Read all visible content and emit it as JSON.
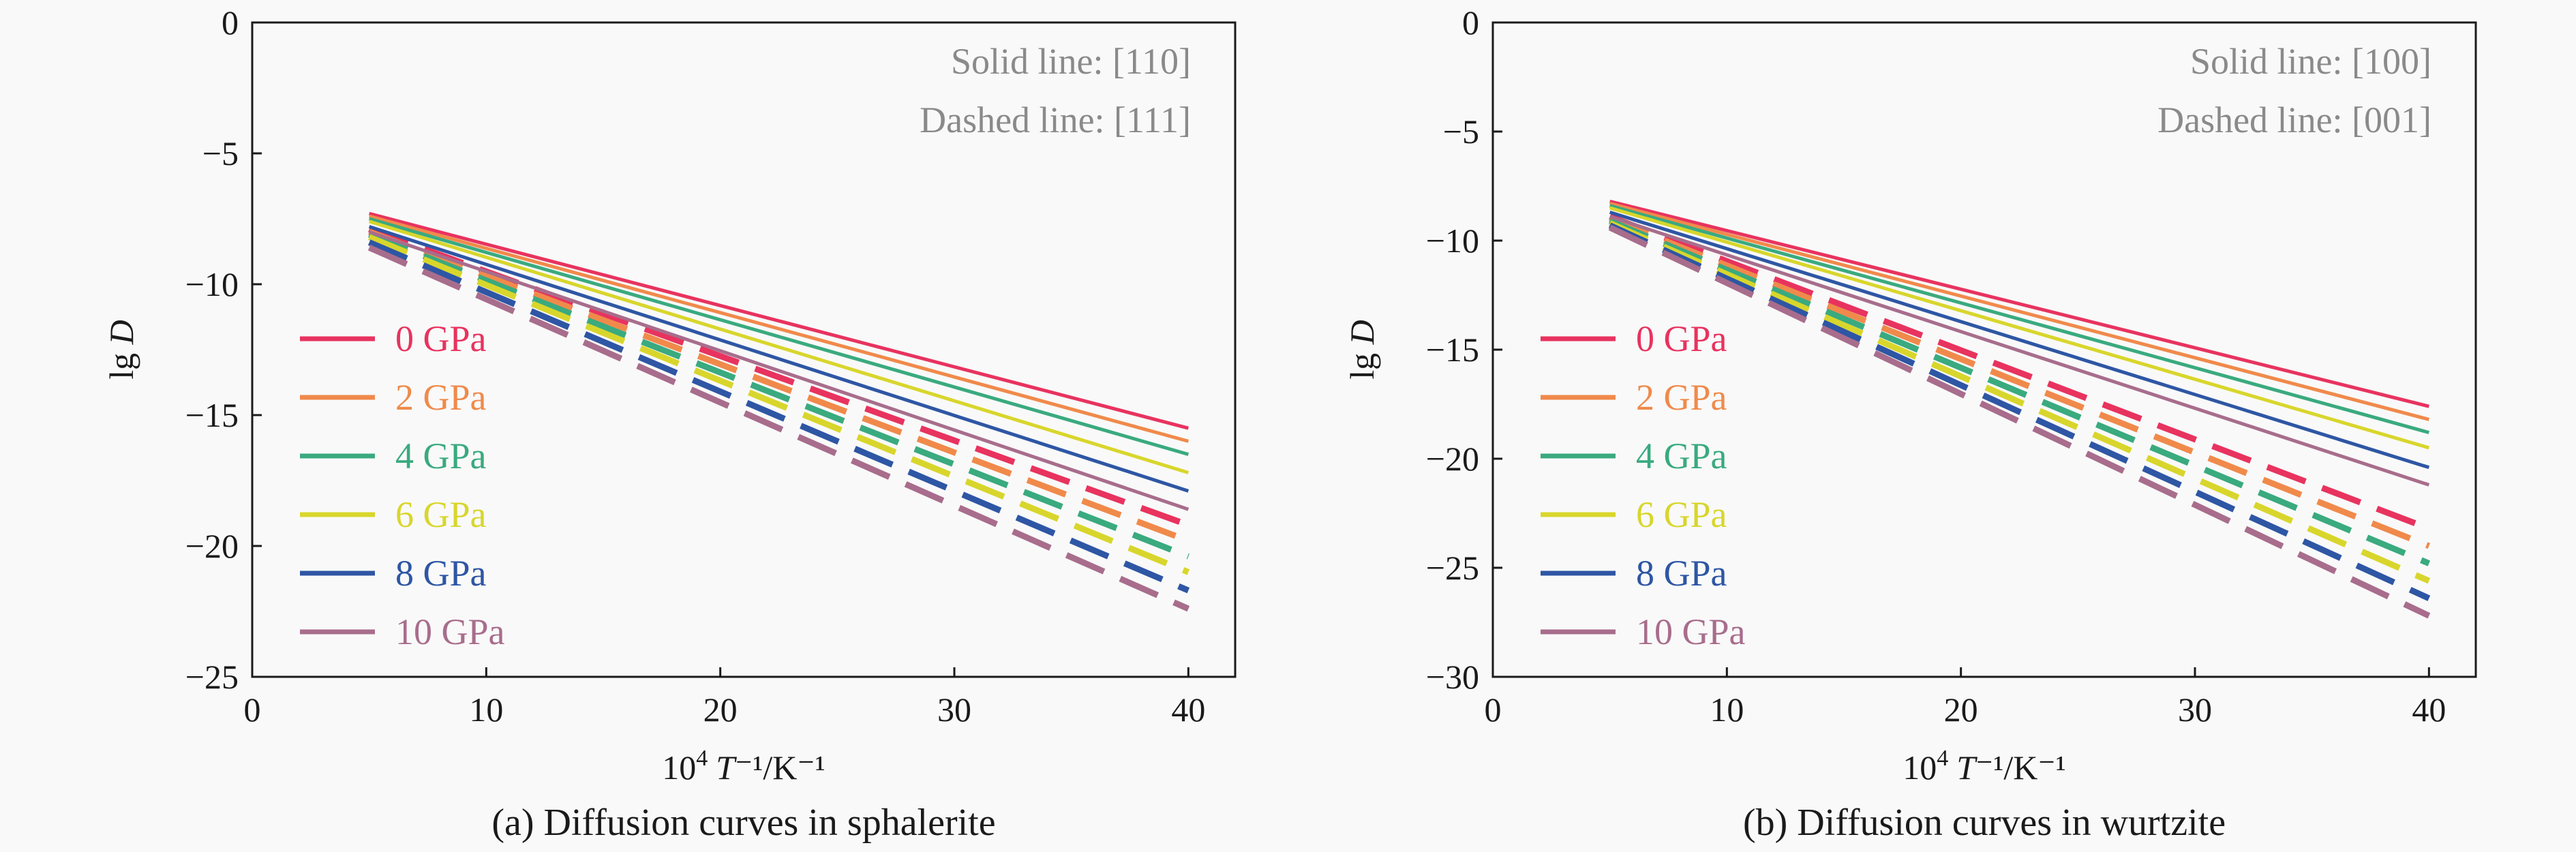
{
  "chart_data": [
    {
      "type": "line",
      "caption": "(a) Diffusion curves in sphalerite",
      "xlabel": {
        "prefix": "10",
        "sup": "4",
        "var": "T",
        "unit": "⁻¹/K⁻¹"
      },
      "ylabel": {
        "prefix": "lg",
        "var": "D"
      },
      "xlim": [
        0,
        42
      ],
      "ylim": [
        -25,
        0
      ],
      "xticks": [
        "0",
        "10",
        "20",
        "30",
        "40"
      ],
      "yticks": [
        "0",
        "−5",
        "−10",
        "−15",
        "−20",
        "−25"
      ],
      "notes": [
        "Solid line: [110]",
        "Dashed line: [111]"
      ],
      "legend_position": "lower-left",
      "series": [
        {
          "name": "0 GPa",
          "color": "#e8335f",
          "solid": [
            [
              5,
              -7.3
            ],
            [
              40,
              -15.5
            ]
          ],
          "dashed": [
            [
              5,
              -7.9
            ],
            [
              40,
              -19.2
            ]
          ]
        },
        {
          "name": "2 GPa",
          "color": "#f08a4b",
          "solid": [
            [
              5,
              -7.4
            ],
            [
              40,
              -16.0
            ]
          ],
          "dashed": [
            [
              5,
              -8.0
            ],
            [
              40,
              -19.8
            ]
          ]
        },
        {
          "name": "4 GPa",
          "color": "#3aaa7f",
          "solid": [
            [
              5,
              -7.5
            ],
            [
              40,
              -16.5
            ]
          ],
          "dashed": [
            [
              5,
              -8.1
            ],
            [
              40,
              -20.4
            ]
          ]
        },
        {
          "name": "6 GPa",
          "color": "#d8d62c",
          "solid": [
            [
              5,
              -7.6
            ],
            [
              40,
              -17.2
            ]
          ],
          "dashed": [
            [
              5,
              -8.2
            ],
            [
              40,
              -21.0
            ]
          ]
        },
        {
          "name": "8 GPa",
          "color": "#2e56a4",
          "solid": [
            [
              5,
              -7.8
            ],
            [
              40,
              -17.9
            ]
          ],
          "dashed": [
            [
              5,
              -8.4
            ],
            [
              40,
              -21.7
            ]
          ]
        },
        {
          "name": "10 GPa",
          "color": "#a86d8c",
          "solid": [
            [
              5,
              -8.0
            ],
            [
              40,
              -18.6
            ]
          ],
          "dashed": [
            [
              5,
              -8.6
            ],
            [
              40,
              -22.4
            ]
          ]
        }
      ]
    },
    {
      "type": "line",
      "caption": "(b) Diffusion curves in wurtzite",
      "xlabel": {
        "prefix": "10",
        "sup": "4",
        "var": "T",
        "unit": "⁻¹/K⁻¹"
      },
      "ylabel": {
        "prefix": "lg",
        "var": "D"
      },
      "xlim": [
        0,
        42
      ],
      "ylim": [
        -30,
        0
      ],
      "xticks": [
        "0",
        "10",
        "20",
        "30",
        "40"
      ],
      "yticks": [
        "0",
        "−5",
        "−10",
        "−15",
        "−20",
        "−25",
        "−30"
      ],
      "notes": [
        "Solid line: [100]",
        "Dashed line: [001]"
      ],
      "legend_position": "lower-left",
      "series": [
        {
          "name": "0 GPa",
          "color": "#e8335f",
          "solid": [
            [
              5,
              -8.2
            ],
            [
              40,
              -17.6
            ]
          ],
          "dashed": [
            [
              5,
              -8.9
            ],
            [
              40,
              -23.2
            ]
          ]
        },
        {
          "name": "2 GPa",
          "color": "#f08a4b",
          "solid": [
            [
              5,
              -8.3
            ],
            [
              40,
              -18.2
            ]
          ],
          "dashed": [
            [
              5,
              -9.0
            ],
            [
              40,
              -24.0
            ]
          ]
        },
        {
          "name": "4 GPa",
          "color": "#3aaa7f",
          "solid": [
            [
              5,
              -8.4
            ],
            [
              40,
              -18.8
            ]
          ],
          "dashed": [
            [
              5,
              -9.1
            ],
            [
              40,
              -24.8
            ]
          ]
        },
        {
          "name": "6 GPa",
          "color": "#d8d62c",
          "solid": [
            [
              5,
              -8.5
            ],
            [
              40,
              -19.5
            ]
          ],
          "dashed": [
            [
              5,
              -9.2
            ],
            [
              40,
              -25.6
            ]
          ]
        },
        {
          "name": "8 GPa",
          "color": "#2e56a4",
          "solid": [
            [
              5,
              -8.7
            ],
            [
              40,
              -20.4
            ]
          ],
          "dashed": [
            [
              5,
              -9.3
            ],
            [
              40,
              -26.4
            ]
          ]
        },
        {
          "name": "10 GPa",
          "color": "#a86d8c",
          "solid": [
            [
              5,
              -8.9
            ],
            [
              40,
              -21.2
            ]
          ],
          "dashed": [
            [
              5,
              -9.4
            ],
            [
              40,
              -27.2
            ]
          ]
        }
      ]
    }
  ]
}
